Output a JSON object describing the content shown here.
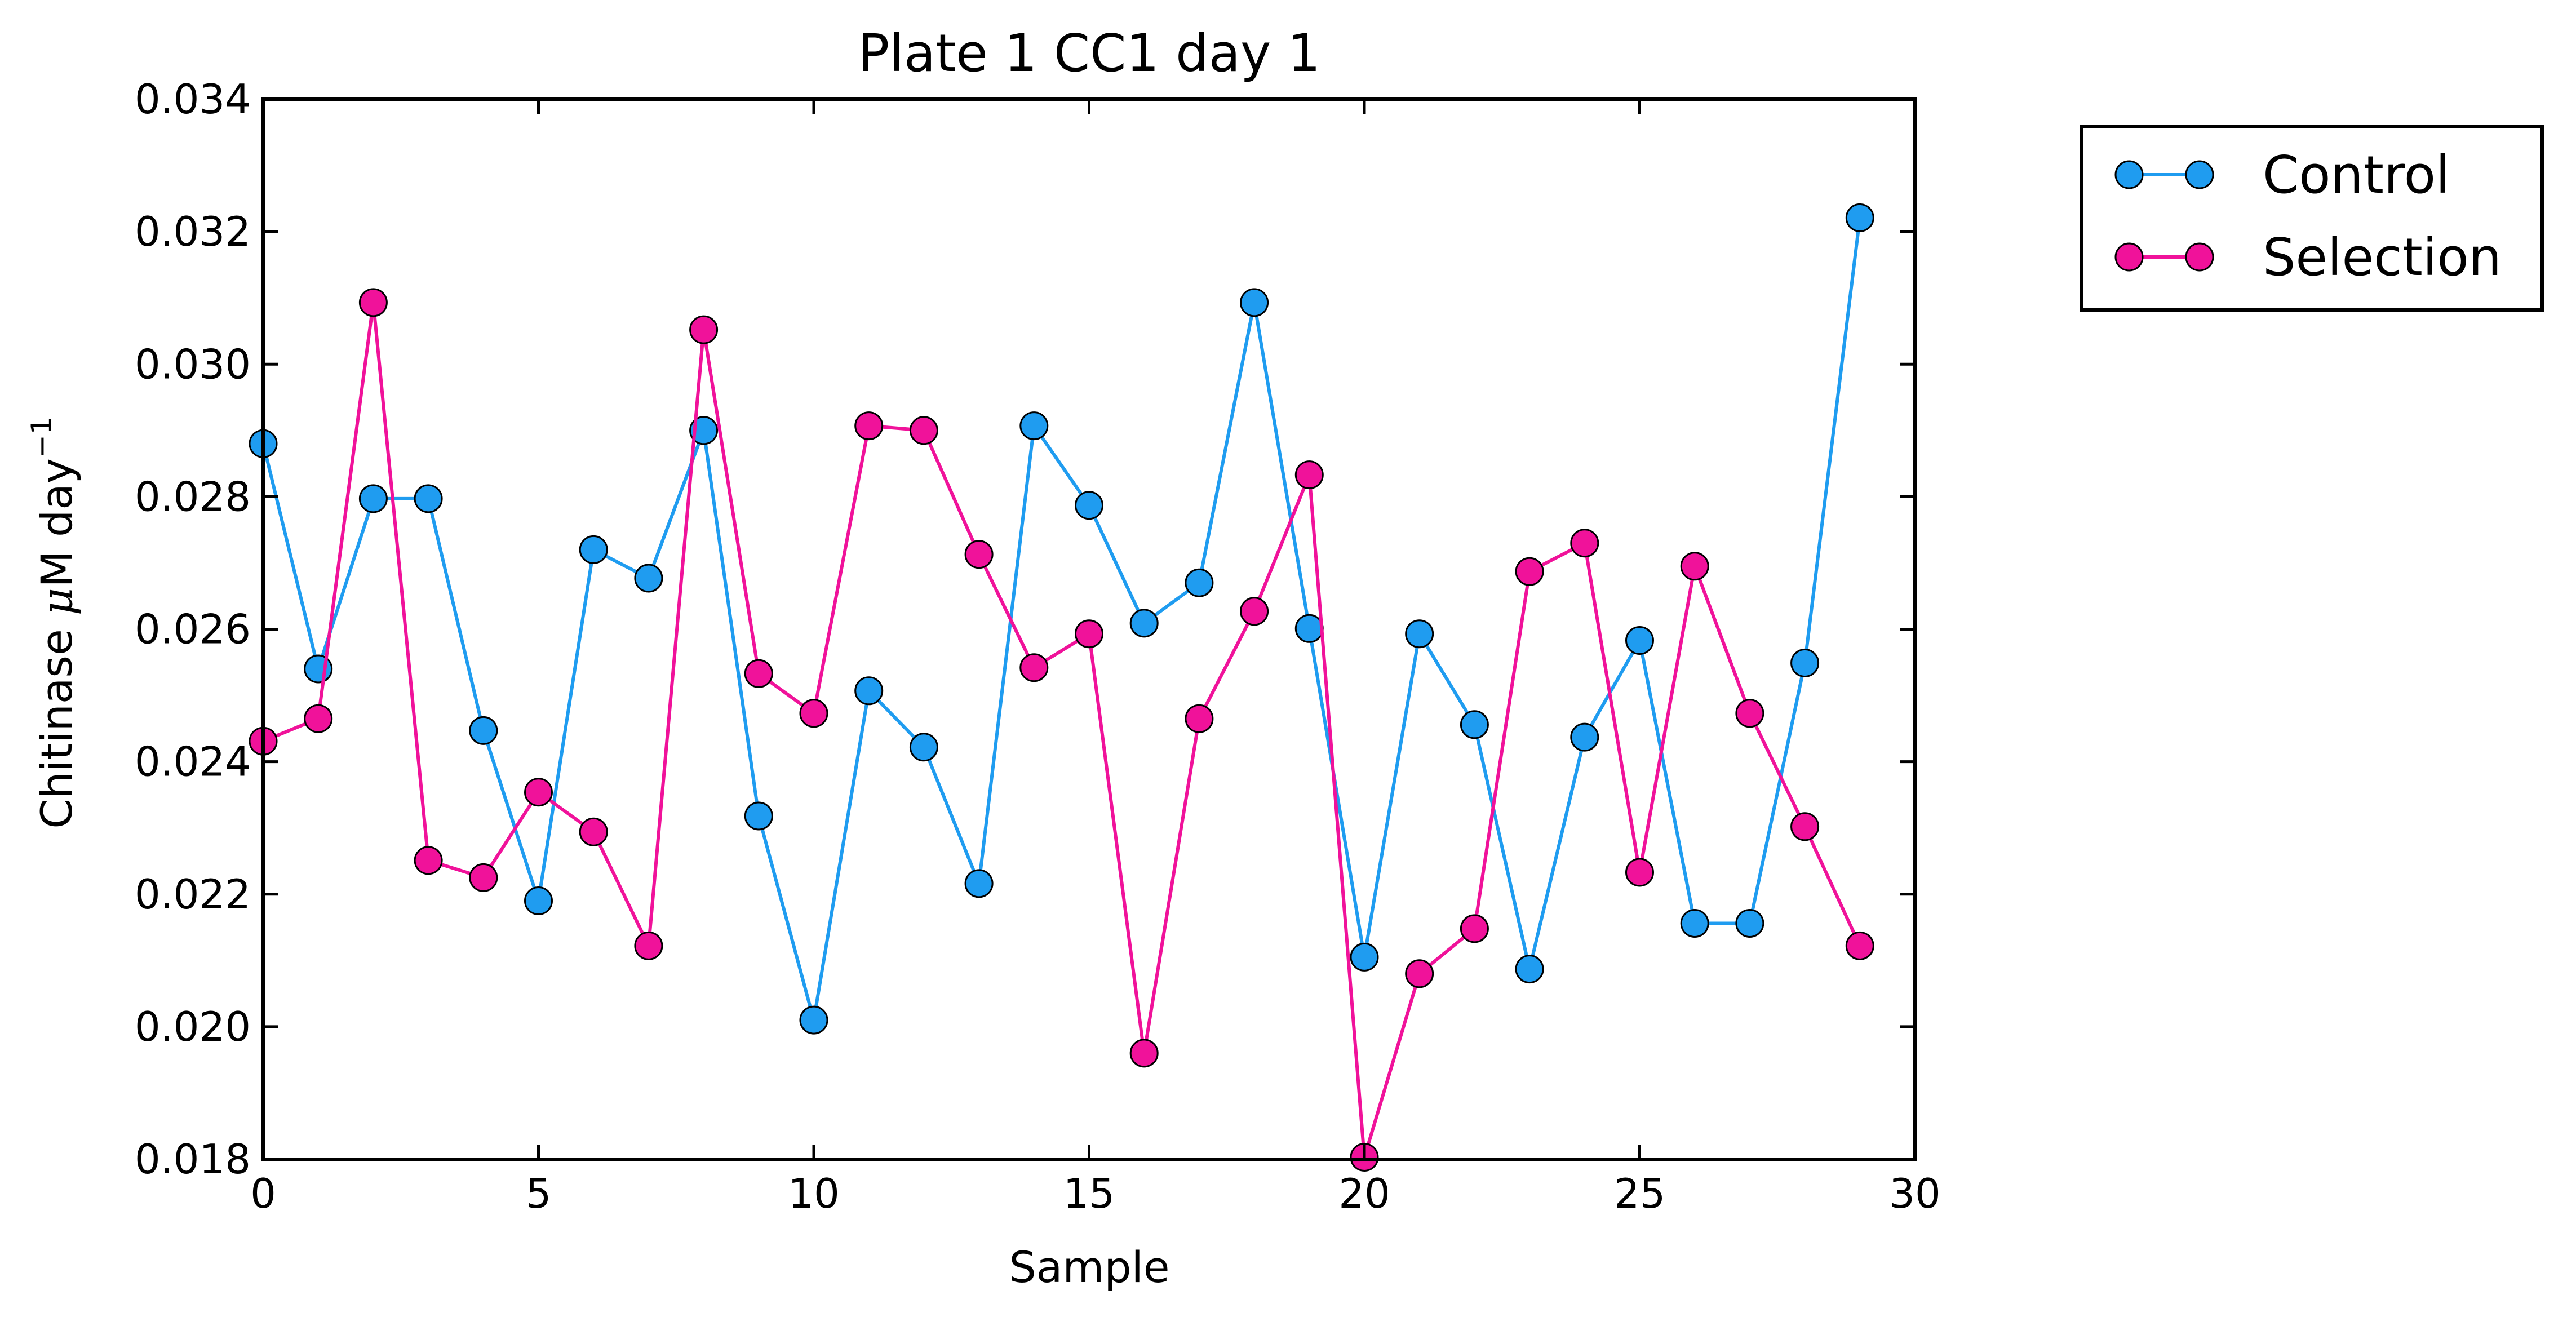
{
  "chart_data": {
    "type": "line",
    "title": "Plate 1 CC1 day 1",
    "xlabel": "Sample",
    "ylabel_prefix": "Chitinase ",
    "ylabel_mu": "μ",
    "ylabel_suffix": "M day",
    "ylabel_exp": "−1",
    "xlim": [
      0,
      30
    ],
    "ylim": [
      0.018,
      0.034
    ],
    "xticks": [
      0,
      5,
      10,
      15,
      20,
      25,
      30
    ],
    "xtick_labels": [
      "0",
      "5",
      "10",
      "15",
      "20",
      "25",
      "30"
    ],
    "yticks": [
      0.018,
      0.02,
      0.022,
      0.024,
      0.026,
      0.028,
      0.03,
      0.032,
      0.034
    ],
    "ytick_labels": [
      "0.018",
      "0.020",
      "0.022",
      "0.024",
      "0.026",
      "0.028",
      "0.030",
      "0.032",
      "0.034"
    ],
    "grid": false,
    "legend_position": "outside-top-right",
    "x": [
      0,
      1,
      2,
      3,
      4,
      5,
      6,
      7,
      8,
      9,
      10,
      11,
      12,
      13,
      14,
      15,
      16,
      17,
      18,
      19,
      20,
      21,
      22,
      23,
      24,
      25,
      26,
      27,
      28,
      29
    ],
    "series": [
      {
        "name": "Control",
        "color": "#1f9cf0",
        "values": [
          0.0288,
          0.0254,
          0.02797,
          0.02797,
          0.02447,
          0.0219,
          0.0272,
          0.02677,
          0.029,
          0.02318,
          0.0201,
          0.02507,
          0.02422,
          0.02216,
          0.02907,
          0.02787,
          0.02609,
          0.0267,
          0.03093,
          0.02601,
          0.02105,
          0.02593,
          0.02456,
          0.02087,
          0.02437,
          0.02583,
          0.02156,
          0.02156,
          0.02549,
          0.03221
        ]
      },
      {
        "name": "Selection",
        "color": "#f0129a",
        "values": [
          0.02431,
          0.02465,
          0.03093,
          0.02251,
          0.02225,
          0.02354,
          0.02294,
          0.02122,
          0.03052,
          0.02533,
          0.02473,
          0.02907,
          0.029,
          0.02713,
          0.02542,
          0.02593,
          0.0196,
          0.02465,
          0.02627,
          0.02833,
          0.01803,
          0.0208,
          0.02148,
          0.02687,
          0.0273,
          0.02233,
          0.02695,
          0.02473,
          0.02302,
          0.02122
        ]
      }
    ]
  }
}
